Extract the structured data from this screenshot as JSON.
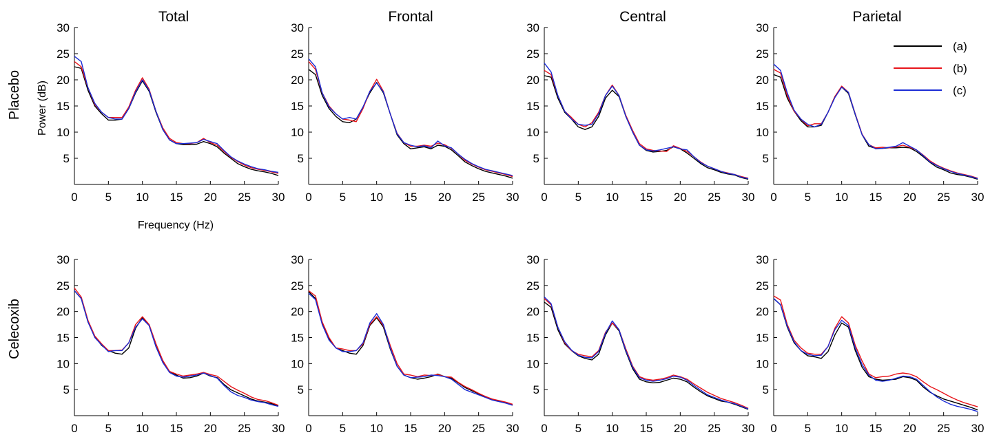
{
  "figure": {
    "column_titles": [
      "Total",
      "Frontal",
      "Central",
      "Parietal"
    ],
    "row_labels": [
      "Placebo",
      "Celecoxib"
    ],
    "xlabel": "Frequency (Hz)",
    "ylabel": "Power (dB)"
  },
  "chart_data": {
    "type": "line",
    "x": [
      0,
      1,
      2,
      3,
      4,
      5,
      6,
      7,
      8,
      9,
      10,
      11,
      12,
      13,
      14,
      15,
      16,
      17,
      18,
      19,
      20,
      21,
      22,
      23,
      24,
      25,
      26,
      27,
      28,
      29,
      30
    ],
    "xlim": [
      0,
      30
    ],
    "ylim": [
      0,
      30
    ],
    "xticks": [
      0,
      5,
      10,
      15,
      20,
      25,
      30
    ],
    "yticks": [
      5,
      10,
      15,
      20,
      25,
      30
    ],
    "legend": {
      "position": "top-right",
      "entries": [
        "(a)",
        "(b)",
        "(c)"
      ]
    },
    "series_colors": [
      "#000000",
      "#e8141a",
      "#1a2cd6"
    ],
    "grid": false,
    "panels": [
      {
        "row": "Placebo",
        "column": "Total",
        "series": [
          {
            "name": "(a)",
            "values": [
              22.5,
              22.2,
              18.0,
              15.0,
              13.5,
              12.3,
              12.3,
              12.5,
              14.5,
              17.5,
              19.8,
              17.8,
              13.8,
              10.5,
              8.5,
              7.8,
              7.6,
              7.6,
              7.7,
              8.2,
              7.8,
              7.2,
              6.0,
              5.0,
              4.0,
              3.4,
              2.9,
              2.6,
              2.4,
              2.1,
              1.7
            ]
          },
          {
            "name": "(b)",
            "values": [
              23.5,
              22.5,
              18.5,
              15.3,
              13.8,
              12.8,
              12.8,
              12.8,
              14.8,
              18.0,
              20.4,
              18.2,
              14.0,
              10.8,
              8.8,
              8.0,
              7.8,
              7.8,
              8.0,
              8.8,
              8.0,
              7.5,
              6.3,
              5.2,
              4.4,
              3.7,
              3.2,
              2.9,
              2.7,
              2.4,
              2.1
            ]
          },
          {
            "name": "(c)",
            "values": [
              24.5,
              23.5,
              18.5,
              15.5,
              13.8,
              12.8,
              12.5,
              12.5,
              14.5,
              17.7,
              20.0,
              18.0,
              14.0,
              10.5,
              8.5,
              7.8,
              7.8,
              7.9,
              8.0,
              8.6,
              8.2,
              7.8,
              6.5,
              5.3,
              4.5,
              3.9,
              3.4,
              3.0,
              2.8,
              2.5,
              2.3
            ]
          }
        ]
      },
      {
        "row": "Placebo",
        "column": "Frontal",
        "series": [
          {
            "name": "(a)",
            "values": [
              22.0,
              21.0,
              17.0,
              14.5,
              13.0,
              12.0,
              11.8,
              12.5,
              14.8,
              17.5,
              19.5,
              17.5,
              13.5,
              9.5,
              7.8,
              6.8,
              7.0,
              7.2,
              6.8,
              7.5,
              7.3,
              6.6,
              5.5,
              4.3,
              3.6,
              3.0,
              2.5,
              2.2,
              1.9,
              1.6,
              1.2
            ]
          },
          {
            "name": "(b)",
            "values": [
              23.5,
              22.0,
              17.5,
              15.0,
              13.5,
              12.5,
              12.3,
              12.0,
              14.5,
              17.8,
              20.1,
              17.8,
              13.5,
              9.8,
              8.0,
              7.3,
              7.3,
              7.5,
              7.3,
              7.9,
              7.6,
              6.9,
              5.8,
              4.6,
              3.9,
              3.3,
              2.8,
              2.5,
              2.2,
              1.9,
              1.5
            ]
          },
          {
            "name": "(c)",
            "values": [
              24.0,
              22.5,
              17.5,
              14.8,
              13.5,
              12.5,
              12.8,
              12.5,
              14.8,
              17.8,
              19.4,
              17.7,
              13.5,
              9.7,
              8.0,
              7.5,
              7.2,
              7.4,
              7.0,
              8.3,
              7.4,
              7.0,
              5.8,
              4.8,
              4.0,
              3.4,
              2.9,
              2.6,
              2.3,
              2.0,
              1.7
            ]
          }
        ]
      },
      {
        "row": "Placebo",
        "column": "Central",
        "series": [
          {
            "name": "(a)",
            "values": [
              20.8,
              20.5,
              16.5,
              13.8,
              12.5,
              11.0,
              10.5,
              11.0,
              13.0,
              16.5,
              18.0,
              16.8,
              13.0,
              10.0,
              7.5,
              6.5,
              6.2,
              6.3,
              6.5,
              7.2,
              6.8,
              6.0,
              5.0,
              4.0,
              3.2,
              2.8,
              2.3,
              2.0,
              1.8,
              1.3,
              1.0
            ]
          },
          {
            "name": "(b)",
            "values": [
              21.8,
              21.0,
              17.0,
              14.0,
              12.8,
              11.5,
              11.0,
              11.8,
              13.8,
              17.0,
              19.0,
              17.0,
              13.2,
              10.3,
              7.8,
              6.8,
              6.5,
              6.4,
              6.3,
              7.4,
              6.9,
              6.3,
              5.3,
              4.3,
              3.5,
              3.0,
              2.5,
              2.2,
              1.9,
              1.5,
              1.2
            ]
          },
          {
            "name": "(c)",
            "values": [
              23.2,
              21.5,
              17.0,
              14.0,
              12.5,
              11.5,
              11.3,
              11.5,
              13.5,
              17.0,
              18.8,
              17.0,
              13.0,
              10.0,
              7.5,
              6.6,
              6.4,
              6.6,
              6.9,
              7.2,
              6.8,
              6.6,
              5.3,
              4.2,
              3.5,
              3.0,
              2.5,
              2.1,
              1.9,
              1.4,
              1.1
            ]
          }
        ]
      },
      {
        "row": "Placebo",
        "column": "Parietal",
        "series": [
          {
            "name": "(a)",
            "values": [
              21.0,
              20.5,
              16.5,
              14.0,
              12.2,
              11.0,
              11.0,
              11.3,
              13.8,
              16.8,
              18.6,
              17.4,
              13.3,
              9.5,
              7.3,
              6.9,
              6.9,
              7.0,
              7.0,
              7.1,
              7.0,
              6.3,
              5.3,
              4.2,
              3.3,
              2.8,
              2.2,
              1.9,
              1.7,
              1.4,
              1.0
            ]
          },
          {
            "name": "(b)",
            "values": [
              22.0,
              21.3,
              17.0,
              14.0,
              12.5,
              11.2,
              11.6,
              11.6,
              13.8,
              16.8,
              18.8,
              17.6,
              13.5,
              9.6,
              7.6,
              7.0,
              7.1,
              7.0,
              7.2,
              7.5,
              7.1,
              6.6,
              5.6,
              4.5,
              3.7,
              3.1,
              2.6,
              2.2,
              1.9,
              1.6,
              1.2
            ]
          },
          {
            "name": "(c)",
            "values": [
              23.0,
              21.8,
              17.5,
              14.2,
              12.5,
              11.5,
              11.0,
              11.5,
              13.8,
              16.6,
              18.6,
              17.6,
              13.4,
              9.5,
              7.6,
              6.8,
              6.9,
              7.1,
              7.3,
              8.0,
              7.3,
              6.6,
              5.5,
              4.3,
              3.6,
              3.0,
              2.5,
              2.1,
              1.8,
              1.5,
              1.1
            ]
          }
        ]
      },
      {
        "row": "Celecoxib",
        "column": "Total",
        "series": [
          {
            "name": "(a)",
            "values": [
              24.0,
              22.5,
              18.0,
              15.2,
              13.5,
              12.5,
              12.0,
              11.8,
              13.0,
              16.8,
              18.8,
              17.3,
              13.3,
              10.3,
              8.5,
              7.8,
              7.2,
              7.3,
              7.6,
              8.2,
              7.6,
              7.3,
              6.0,
              5.0,
              4.4,
              3.8,
              3.2,
              2.8,
              2.6,
              2.3,
              1.9
            ]
          },
          {
            "name": "(b)",
            "values": [
              24.5,
              22.8,
              18.3,
              15.3,
              13.8,
              12.5,
              12.5,
              12.6,
              14.0,
              17.5,
              19.0,
              17.5,
              13.8,
              10.6,
              8.5,
              8.0,
              7.6,
              7.8,
              8.0,
              8.3,
              7.9,
              7.6,
              6.6,
              5.6,
              4.9,
              4.3,
              3.6,
              3.1,
              2.9,
              2.5,
              2.0
            ]
          },
          {
            "name": "(c)",
            "values": [
              24.0,
              22.5,
              18.0,
              15.0,
              13.6,
              12.3,
              12.5,
              12.5,
              14.0,
              17.0,
              18.6,
              17.3,
              13.2,
              10.2,
              8.3,
              7.6,
              7.4,
              7.6,
              7.8,
              8.2,
              7.7,
              7.2,
              5.8,
              4.6,
              3.9,
              3.5,
              3.0,
              2.7,
              2.5,
              2.1,
              1.8
            ]
          }
        ]
      },
      {
        "row": "Celecoxib",
        "column": "Frontal",
        "series": [
          {
            "name": "(a)",
            "values": [
              23.8,
              22.5,
              17.8,
              14.8,
              13.0,
              12.5,
              12.0,
              11.8,
              13.5,
              17.3,
              18.8,
              17.0,
              12.8,
              9.5,
              7.8,
              7.3,
              7.0,
              7.2,
              7.5,
              8.0,
              7.5,
              7.2,
              6.3,
              5.4,
              4.8,
              4.2,
              3.6,
              3.1,
              2.8,
              2.5,
              2.1
            ]
          },
          {
            "name": "(b)",
            "values": [
              24.0,
              23.0,
              18.0,
              15.0,
              13.0,
              12.8,
              12.5,
              12.5,
              13.8,
              17.5,
              19.0,
              17.3,
              13.5,
              10.0,
              8.0,
              7.8,
              7.5,
              7.8,
              7.7,
              7.9,
              7.5,
              7.4,
              6.4,
              5.6,
              5.0,
              4.3,
              3.7,
              3.2,
              2.9,
              2.6,
              2.2
            ]
          },
          {
            "name": "(c)",
            "values": [
              23.5,
              22.3,
              17.5,
              14.5,
              13.0,
              12.3,
              12.3,
              12.5,
              14.0,
              17.8,
              19.6,
              17.5,
              13.0,
              9.5,
              7.8,
              7.3,
              7.4,
              7.5,
              7.8,
              7.7,
              7.5,
              7.0,
              6.0,
              5.0,
              4.5,
              4.0,
              3.5,
              3.0,
              2.7,
              2.4,
              2.0
            ]
          }
        ]
      },
      {
        "row": "Celecoxib",
        "column": "Central",
        "series": [
          {
            "name": "(a)",
            "values": [
              21.8,
              20.8,
              16.5,
              13.8,
              12.5,
              11.5,
              11.0,
              10.7,
              11.8,
              15.5,
              17.8,
              16.3,
              12.3,
              9.0,
              7.0,
              6.5,
              6.3,
              6.4,
              6.8,
              7.2,
              7.0,
              6.5,
              5.5,
              4.6,
              3.8,
              3.3,
              2.8,
              2.6,
              2.2,
              1.7,
              1.2
            ]
          },
          {
            "name": "(b)",
            "values": [
              22.5,
              21.3,
              17.0,
              14.0,
              12.5,
              11.8,
              11.5,
              11.3,
              12.5,
              16.0,
              17.8,
              16.5,
              12.8,
              9.5,
              7.5,
              7.0,
              6.8,
              7.0,
              7.3,
              7.8,
              7.5,
              7.0,
              6.1,
              5.3,
              4.5,
              3.9,
              3.3,
              2.9,
              2.5,
              2.0,
              1.4
            ]
          },
          {
            "name": "(c)",
            "values": [
              22.8,
              21.5,
              17.0,
              14.2,
              12.6,
              11.6,
              11.2,
              11.1,
              12.3,
              15.8,
              18.2,
              16.5,
              12.5,
              9.3,
              7.3,
              6.8,
              6.6,
              6.8,
              7.1,
              7.6,
              7.4,
              6.8,
              5.8,
              4.9,
              4.0,
              3.5,
              3.0,
              2.6,
              2.3,
              1.8,
              1.3
            ]
          }
        ]
      },
      {
        "row": "Celecoxib",
        "column": "Parietal",
        "series": [
          {
            "name": "(a)",
            "values": [
              22.5,
              21.3,
              17.0,
              14.0,
              12.5,
              11.5,
              11.3,
              11.0,
              12.3,
              15.5,
              17.8,
              17.0,
              12.5,
              9.3,
              7.5,
              7.0,
              6.8,
              6.9,
              7.0,
              7.5,
              7.3,
              6.8,
              5.5,
              4.5,
              3.8,
              3.2,
              2.8,
              2.4,
              2.0,
              1.6,
              1.1
            ]
          },
          {
            "name": "(b)",
            "values": [
              23.0,
              22.2,
              17.5,
              14.5,
              13.0,
              12.0,
              11.8,
              11.8,
              13.3,
              16.8,
              19.0,
              17.8,
              13.5,
              10.5,
              8.0,
              7.3,
              7.5,
              7.6,
              8.0,
              8.2,
              8.0,
              7.5,
              6.5,
              5.6,
              5.0,
              4.3,
              3.6,
              3.0,
              2.5,
              2.1,
              1.7
            ]
          },
          {
            "name": "(c)",
            "values": [
              22.5,
              21.3,
              17.2,
              14.2,
              12.5,
              11.8,
              11.5,
              11.6,
              13.3,
              16.5,
              18.3,
              17.3,
              13.0,
              9.8,
              7.8,
              6.8,
              6.6,
              6.8,
              7.2,
              7.6,
              7.5,
              7.0,
              5.8,
              4.6,
              3.6,
              2.8,
              2.2,
              1.8,
              1.5,
              1.2,
              0.8
            ]
          }
        ]
      }
    ]
  }
}
